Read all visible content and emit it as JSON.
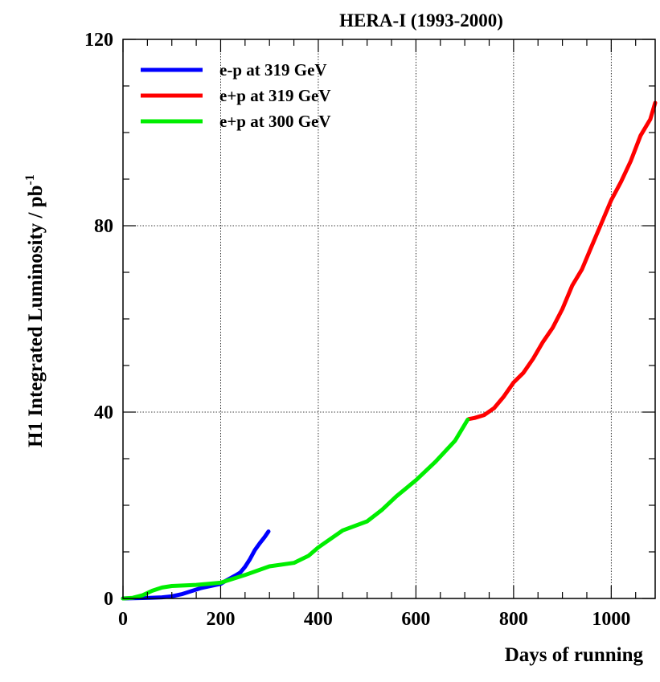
{
  "chart_data": {
    "type": "line",
    "title": "HERA-I  (1993-2000)",
    "xlabel": "Days of running",
    "ylabel": "H1 Integrated Luminosity / pb",
    "ylabel_superscript": "-1",
    "xlim": [
      0,
      1090
    ],
    "ylim": [
      0,
      120
    ],
    "x_ticks": [
      0,
      200,
      400,
      600,
      800,
      1000
    ],
    "y_ticks": [
      0,
      40,
      80,
      120
    ],
    "x_tick_labels": [
      "0",
      "200",
      "400",
      "600",
      "800",
      "1000"
    ],
    "y_tick_labels": [
      "0",
      "40",
      "80",
      "120"
    ],
    "grid": true,
    "legend_position": "top-left",
    "series": [
      {
        "name": "e-p at 319 GeV",
        "color": "#0000ff",
        "x": [
          0,
          20,
          40,
          60,
          80,
          100,
          120,
          140,
          160,
          180,
          200,
          210,
          220,
          230,
          240,
          250,
          260,
          270,
          280,
          290,
          298
        ],
        "y": [
          0,
          0.1,
          0.2,
          0.3,
          0.4,
          0.6,
          1.0,
          1.6,
          2.2,
          2.6,
          3.0,
          3.6,
          4.2,
          4.8,
          5.5,
          6.8,
          8.5,
          10.5,
          12.0,
          13.3,
          14.5
        ]
      },
      {
        "name": "e+p at 319 GeV",
        "color": "#ff0000",
        "x": [
          708,
          720,
          740,
          760,
          780,
          800,
          820,
          840,
          860,
          880,
          900,
          920,
          940,
          960,
          980,
          1000,
          1020,
          1040,
          1060,
          1080,
          1090
        ],
        "y": [
          38.5,
          38.8,
          39.5,
          41.0,
          43.5,
          46.5,
          48.5,
          51.5,
          55.0,
          58.0,
          62.0,
          67.0,
          70.5,
          75.5,
          80.5,
          85.5,
          89.5,
          94.0,
          99.5,
          103.0,
          106.5
        ]
      },
      {
        "name": "e+p at 300 GeV",
        "color": "#00ee00",
        "x": [
          0,
          20,
          40,
          60,
          80,
          100,
          150,
          200,
          250,
          300,
          350,
          380,
          400,
          450,
          500,
          530,
          560,
          600,
          640,
          680,
          706
        ],
        "y": [
          0,
          0.2,
          0.8,
          1.8,
          2.5,
          2.8,
          3.0,
          3.4,
          5.0,
          6.8,
          7.5,
          9.0,
          10.8,
          14.5,
          16.5,
          19.0,
          22.0,
          25.5,
          29.5,
          34.0,
          38.5
        ]
      }
    ]
  }
}
